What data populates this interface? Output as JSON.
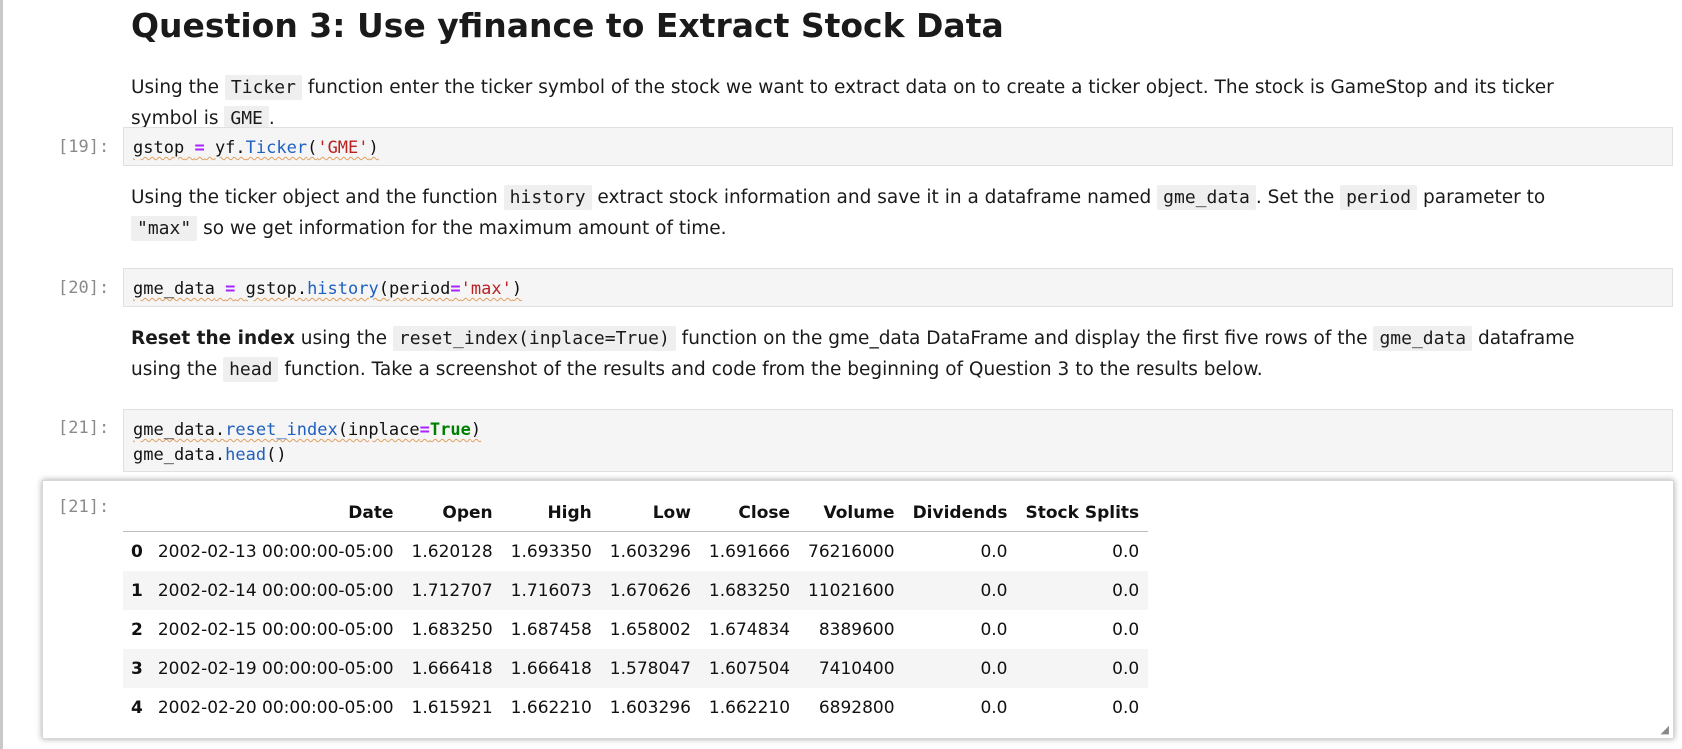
{
  "heading": "Question 3: Use yfinance to Extract Stock Data",
  "md1": {
    "t1": "Using the ",
    "c1": "Ticker",
    "t2": " function enter the ticker symbol of the stock we want to extract data on to create a ticker object. The stock is GameStop and its ticker symbol is ",
    "c2": "GME",
    "t3": "."
  },
  "cell19": {
    "prompt": "[19]:",
    "var": "gstop",
    "eq": "=",
    "obj": "yf.",
    "fn": "Ticker",
    "open": "(",
    "arg": "'GME'",
    "close": ")"
  },
  "md2": {
    "t1": "Using the ticker object and the function ",
    "c1": "history",
    "t2": " extract stock information and save it in a dataframe named ",
    "c2": "gme_data",
    "t3": ". Set the ",
    "c3": "period",
    "t4": " parameter to ",
    "c4": "\"max\"",
    "t5": " so we get information for the maximum amount of time."
  },
  "cell20": {
    "prompt": "[20]:",
    "var": "gme_data",
    "eq": "=",
    "obj": "gstop.",
    "fn": "history",
    "open": "(period",
    "eq2": "=",
    "arg": "'max'",
    "close": ")"
  },
  "md3": {
    "bold": "Reset the index",
    "t1": " using the ",
    "c1": "reset_index(inplace=True)",
    "t2": " function on the gme_data DataFrame and display the first five rows of the ",
    "c2": "gme_data",
    "t3": " dataframe using the ",
    "c3": "head",
    "t4": " function. Take a screenshot of the results and code from the beginning of Question 3 to the results below."
  },
  "cell21": {
    "prompt": "[21]:",
    "l1_obj": "gme_data.",
    "l1_fn": "reset_index",
    "l1_open": "(inplace",
    "l1_eq": "=",
    "l1_kw": "True",
    "l1_close": ")",
    "l2_obj": "gme_data.",
    "l2_fn": "head",
    "l2_close": "()"
  },
  "output21": {
    "prompt": "[21]:",
    "columns": [
      "",
      "Date",
      "Open",
      "High",
      "Low",
      "Close",
      "Volume",
      "Dividends",
      "Stock Splits"
    ],
    "rows": [
      [
        "0",
        "2002-02-13 00:00:00-05:00",
        "1.620128",
        "1.693350",
        "1.603296",
        "1.691666",
        "76216000",
        "0.0",
        "0.0"
      ],
      [
        "1",
        "2002-02-14 00:00:00-05:00",
        "1.712707",
        "1.716073",
        "1.670626",
        "1.683250",
        "11021600",
        "0.0",
        "0.0"
      ],
      [
        "2",
        "2002-02-15 00:00:00-05:00",
        "1.683250",
        "1.687458",
        "1.658002",
        "1.674834",
        "8389600",
        "0.0",
        "0.0"
      ],
      [
        "3",
        "2002-02-19 00:00:00-05:00",
        "1.666418",
        "1.666418",
        "1.578047",
        "1.607504",
        "7410400",
        "0.0",
        "0.0"
      ],
      [
        "4",
        "2002-02-20 00:00:00-05:00",
        "1.615921",
        "1.662210",
        "1.603296",
        "1.662210",
        "6892800",
        "0.0",
        "0.0"
      ]
    ]
  },
  "icons": {
    "resize": "resize-handle-icon"
  }
}
